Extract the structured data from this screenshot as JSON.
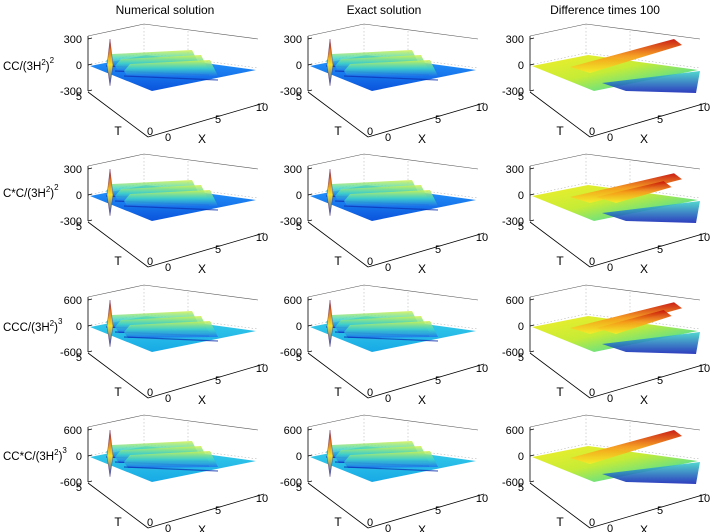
{
  "figure": {
    "column_titles": [
      "Numerical solution",
      "Exact solution",
      "Difference times 100"
    ],
    "row_labels": [
      {
        "base": "CC/(3H",
        "sup1": "2",
        "close": ")",
        "sup2": "2"
      },
      {
        "base": "C*C/(3H",
        "sup1": "2",
        "close": ")",
        "sup2": "2"
      },
      {
        "base": "CCC/(3H",
        "sup1": "2",
        "close": ")",
        "sup2": "3"
      },
      {
        "base": "CC*C/(3H",
        "sup1": "2",
        "close": ")",
        "sup2": "3"
      }
    ]
  },
  "chart_data": [
    {
      "type": "surface",
      "row": 0,
      "col": 0,
      "kind": "solution",
      "title": "Numerical solution",
      "zticks": [
        "300",
        "0",
        "-300"
      ],
      "zlim": [
        -300,
        300
      ],
      "tticks": [
        "5",
        "0"
      ],
      "xticks": [
        "0",
        "5",
        "10"
      ],
      "xlabel": "X",
      "tlabel": "T",
      "xlim": [
        0,
        10
      ],
      "tlim": [
        0,
        5
      ],
      "peak": 300
    },
    {
      "type": "surface",
      "row": 0,
      "col": 1,
      "kind": "solution",
      "title": "Exact solution",
      "zticks": [
        "300",
        "0",
        "-300"
      ],
      "zlim": [
        -300,
        300
      ],
      "tticks": [
        "5",
        "0"
      ],
      "xticks": [
        "0",
        "5",
        "10"
      ],
      "xlabel": "X",
      "tlabel": "T",
      "xlim": [
        0,
        10
      ],
      "tlim": [
        0,
        5
      ],
      "peak": 300
    },
    {
      "type": "surface",
      "row": 0,
      "col": 2,
      "kind": "difference",
      "title": "Difference times 100",
      "zticks": [
        "300",
        "0",
        "-300"
      ],
      "zlim": [
        -300,
        300
      ],
      "tticks": [
        "5",
        "0"
      ],
      "xticks": [
        "0",
        "5",
        "10"
      ],
      "xlabel": "X",
      "tlabel": "T",
      "xlim": [
        0,
        10
      ],
      "tlim": [
        0,
        5
      ],
      "peak": 300
    },
    {
      "type": "surface",
      "row": 1,
      "col": 0,
      "kind": "solution",
      "title": "Numerical solution",
      "zticks": [
        "300",
        "0",
        "-300"
      ],
      "zlim": [
        -300,
        300
      ],
      "tticks": [
        "5",
        "0"
      ],
      "xticks": [
        "0",
        "5",
        "10"
      ],
      "xlabel": "X",
      "tlabel": "T",
      "xlim": [
        0,
        10
      ],
      "tlim": [
        0,
        5
      ],
      "peak": 300
    },
    {
      "type": "surface",
      "row": 1,
      "col": 1,
      "kind": "solution",
      "title": "Exact solution",
      "zticks": [
        "300",
        "0",
        "-300"
      ],
      "zlim": [
        -300,
        300
      ],
      "tticks": [
        "5",
        "0"
      ],
      "xticks": [
        "0",
        "5",
        "10"
      ],
      "xlabel": "X",
      "tlabel": "T",
      "xlim": [
        0,
        10
      ],
      "tlim": [
        0,
        5
      ],
      "peak": 300
    },
    {
      "type": "surface",
      "row": 1,
      "col": 2,
      "kind": "difference",
      "title": "Difference times 100",
      "zticks": [
        "300",
        "0",
        "-300"
      ],
      "zlim": [
        -300,
        300
      ],
      "tticks": [
        "5",
        "0"
      ],
      "xticks": [
        "0",
        "5",
        "10"
      ],
      "xlabel": "X",
      "tlabel": "T",
      "xlim": [
        0,
        10
      ],
      "tlim": [
        0,
        5
      ],
      "peak": 250
    },
    {
      "type": "surface",
      "row": 2,
      "col": 0,
      "kind": "solution",
      "title": "Numerical solution",
      "zticks": [
        "600",
        "0",
        "-600"
      ],
      "zlim": [
        -600,
        600
      ],
      "tticks": [
        "5",
        "0"
      ],
      "xticks": [
        "0",
        "5",
        "10"
      ],
      "xlabel": "X",
      "tlabel": "T",
      "xlim": [
        0,
        10
      ],
      "tlim": [
        0,
        5
      ],
      "peak": 600
    },
    {
      "type": "surface",
      "row": 2,
      "col": 1,
      "kind": "solution",
      "title": "Exact solution",
      "zticks": [
        "600",
        "0",
        "-600"
      ],
      "zlim": [
        -600,
        600
      ],
      "tticks": [
        "5",
        "0"
      ],
      "xticks": [
        "0",
        "5",
        "10"
      ],
      "xlabel": "X",
      "tlabel": "T",
      "xlim": [
        0,
        10
      ],
      "tlim": [
        0,
        5
      ],
      "peak": 600
    },
    {
      "type": "surface",
      "row": 2,
      "col": 2,
      "kind": "difference",
      "title": "Difference times 100",
      "zticks": [
        "600",
        "0",
        "-600"
      ],
      "zlim": [
        -600,
        600
      ],
      "tticks": [
        "5",
        "0"
      ],
      "xticks": [
        "0",
        "5",
        "10"
      ],
      "xlabel": "X",
      "tlabel": "T",
      "xlim": [
        0,
        10
      ],
      "tlim": [
        0,
        5
      ],
      "peak": 550
    },
    {
      "type": "surface",
      "row": 3,
      "col": 0,
      "kind": "solution",
      "title": "Numerical solution",
      "zticks": [
        "600",
        "0",
        "-600"
      ],
      "zlim": [
        -600,
        600
      ],
      "tticks": [
        "5",
        "0"
      ],
      "xticks": [
        "0",
        "5",
        "10"
      ],
      "xlabel": "X",
      "tlabel": "T",
      "xlim": [
        0,
        10
      ],
      "tlim": [
        0,
        5
      ],
      "peak": 600
    },
    {
      "type": "surface",
      "row": 3,
      "col": 1,
      "kind": "solution",
      "title": "Exact solution",
      "zticks": [
        "600",
        "0",
        "-600"
      ],
      "zlim": [
        -600,
        600
      ],
      "tticks": [
        "5",
        "0"
      ],
      "xticks": [
        "0",
        "5",
        "10"
      ],
      "xlabel": "X",
      "tlabel": "T",
      "xlim": [
        0,
        10
      ],
      "tlim": [
        0,
        5
      ],
      "peak": 600
    },
    {
      "type": "surface",
      "row": 3,
      "col": 2,
      "kind": "difference",
      "title": "Difference times 100",
      "zticks": [
        "600",
        "0",
        "-600"
      ],
      "zlim": [
        -600,
        600
      ],
      "tticks": [
        "5",
        "0"
      ],
      "xticks": [
        "0",
        "5",
        "10"
      ],
      "xlabel": "X",
      "tlabel": "T",
      "xlim": [
        0,
        10
      ],
      "tlim": [
        0,
        5
      ],
      "peak": 600
    }
  ]
}
